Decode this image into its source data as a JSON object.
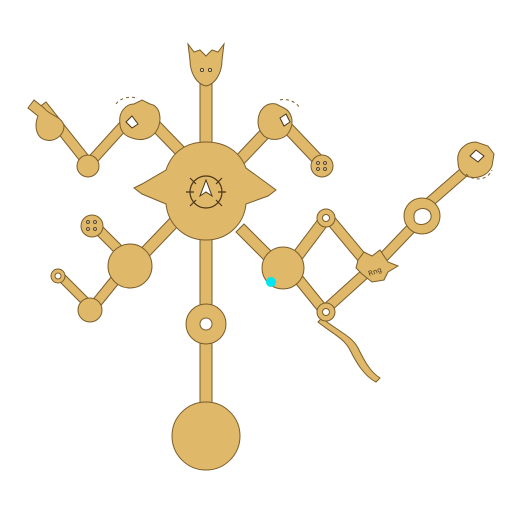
{
  "scene": {
    "background": "#ffffff",
    "fill_color": "#dfb86a",
    "stroke_color": "#7a5d2a",
    "player_marker_color": "#00e5f2",
    "tiny_label": "Rng"
  },
  "icons": {
    "center_hub": "compass-sun-icon",
    "top_gate": "horned-gate-icon",
    "creature_node": "creature-emblem-icon",
    "player_marker": "player-location-icon"
  }
}
